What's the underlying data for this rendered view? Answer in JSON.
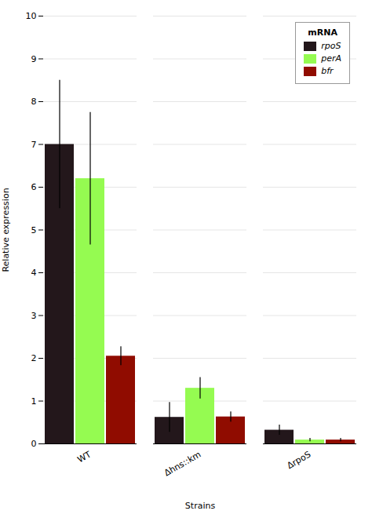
{
  "chart_data": {
    "type": "bar",
    "xlabel": "Strains",
    "ylabel": "Relative expression",
    "categories": [
      "WT",
      "Δhns::km",
      "ΔrpoS"
    ],
    "series": [
      {
        "name": "rpoS",
        "values": [
          7.0,
          0.62,
          0.32
        ],
        "errors": [
          1.5,
          0.35,
          0.12
        ]
      },
      {
        "name": "perA",
        "values": [
          6.2,
          1.3,
          0.09
        ],
        "errors": [
          1.55,
          0.25,
          0.04
        ]
      },
      {
        "name": "bfr",
        "values": [
          2.05,
          0.63,
          0.09
        ],
        "errors": [
          0.22,
          0.12,
          0.04
        ]
      }
    ],
    "ylim": [
      0,
      10
    ],
    "yticks": [
      0,
      1,
      2,
      3,
      4,
      5,
      6,
      7,
      8,
      9,
      10
    ],
    "grid": true,
    "legend": "upper right",
    "legend_title": "mRNA"
  }
}
